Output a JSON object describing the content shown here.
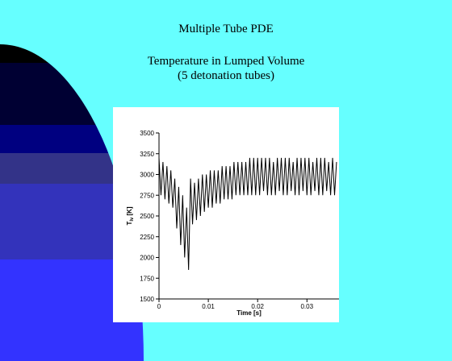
{
  "slide": {
    "title": "Multiple Tube PDE",
    "subtitle": "Temperature in Lumped Volume",
    "subtitle2": "(5 detonation tubes)"
  },
  "chart_data": {
    "type": "line",
    "xlabel": "Time [s]",
    "ylabel": "T",
    "ylabel_sub": "lv",
    "ylabel_unit": "[K]",
    "xlim": [
      0,
      0.0365
    ],
    "ylim": [
      1500,
      3500
    ],
    "xticks": [
      0,
      0.01,
      0.02,
      0.03
    ],
    "yticks": [
      1500,
      1750,
      2000,
      2250,
      2500,
      2750,
      3000,
      3250,
      3500
    ],
    "color": "#000000",
    "x": [
      0,
      0.0004,
      0.0008,
      0.0012,
      0.0016,
      0.002,
      0.0024,
      0.0028,
      0.0032,
      0.0036,
      0.004,
      0.0044,
      0.0048,
      0.0052,
      0.0056,
      0.006,
      0.0064,
      0.0068,
      0.0072,
      0.0076,
      0.008,
      0.0084,
      0.0088,
      0.0092,
      0.0096,
      0.01,
      0.0104,
      0.0108,
      0.0112,
      0.0116,
      0.012,
      0.0124,
      0.0128,
      0.0132,
      0.0136,
      0.014,
      0.0144,
      0.0148,
      0.0152,
      0.0156,
      0.016,
      0.0164,
      0.0168,
      0.0172,
      0.0176,
      0.018,
      0.0184,
      0.0188,
      0.0192,
      0.0196,
      0.02,
      0.0204,
      0.0208,
      0.0212,
      0.0216,
      0.022,
      0.0224,
      0.0228,
      0.0232,
      0.0236,
      0.024,
      0.0244,
      0.0248,
      0.0252,
      0.0256,
      0.026,
      0.0264,
      0.0268,
      0.0272,
      0.0276,
      0.028,
      0.0284,
      0.0288,
      0.0292,
      0.0296,
      0.03,
      0.0304,
      0.0308,
      0.0312,
      0.0316,
      0.032,
      0.0324,
      0.0328,
      0.0332,
      0.0336,
      0.034,
      0.0344,
      0.0348,
      0.0352,
      0.0356,
      0.036
    ],
    "values": [
      3200,
      2750,
      3150,
      2700,
      3100,
      2650,
      3050,
      2600,
      2950,
      2350,
      2850,
      2150,
      2750,
      2000,
      2600,
      1850,
      2950,
      2400,
      2900,
      2450,
      2950,
      2500,
      3000,
      2550,
      3000,
      2600,
      3050,
      2600,
      3050,
      2650,
      3050,
      2650,
      3100,
      2700,
      3100,
      2700,
      3100,
      2700,
      3150,
      2750,
      3150,
      2750,
      3150,
      2750,
      3150,
      2750,
      3200,
      2750,
      3200,
      2750,
      3200,
      2750,
      3200,
      2800,
      3200,
      2750,
      3200,
      2750,
      3150,
      2750,
      3200,
      2800,
      3200,
      2750,
      3200,
      2750,
      3200,
      2800,
      3150,
      2750,
      3200,
      2750,
      3200,
      2800,
      3200,
      2750,
      3200,
      2750,
      3150,
      2800,
      3200,
      2750,
      3200,
      2750,
      3200,
      2800,
      3150,
      2750,
      3200,
      2750,
      3150
    ]
  }
}
